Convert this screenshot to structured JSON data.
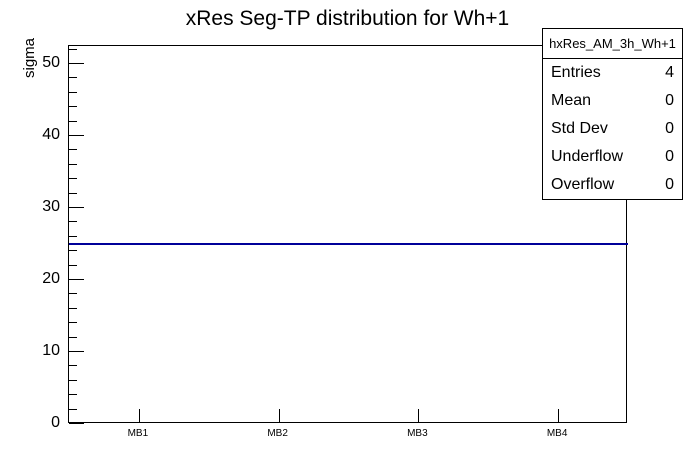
{
  "chart_data": {
    "type": "line",
    "title": "xRes Seg-TP distribution for Wh+1",
    "xlabel": "",
    "ylabel": "sigma",
    "categories": [
      "MB1",
      "MB2",
      "MB3",
      "MB4"
    ],
    "values": [
      25,
      25,
      25,
      25
    ],
    "ylim": [
      0,
      52.5
    ],
    "y_major_ticks": [
      0,
      10,
      20,
      30,
      40,
      50
    ],
    "y_minor_step": 2,
    "grid": "off",
    "legend": "none",
    "line_color": "#000099",
    "annotation": "flat histogram line at sigma = 25 spanning all four bins"
  },
  "stats_box": {
    "title": "hxRes_AM_3h_Wh+1",
    "rows": [
      {
        "label": "Entries",
        "value": "4"
      },
      {
        "label": "Mean",
        "value": "0"
      },
      {
        "label": "Std Dev",
        "value": "0"
      },
      {
        "label": "Underflow",
        "value": "0"
      },
      {
        "label": "Overflow",
        "value": "0"
      }
    ]
  }
}
